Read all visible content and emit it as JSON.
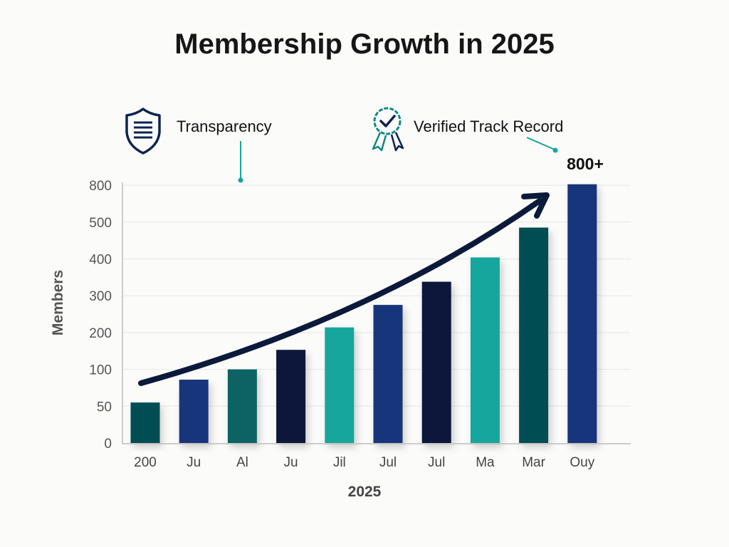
{
  "chart_data": {
    "type": "bar",
    "title": "Membership Growth in 2025",
    "xlabel": "2025",
    "ylabel": "Members",
    "y_tick_labels": [
      0,
      50,
      100,
      200,
      300,
      400,
      500,
      800
    ],
    "ylim": [
      0,
      800
    ],
    "grid": true,
    "categories": [
      "200",
      "Ju",
      "Al",
      "Ju",
      "Jil",
      "Jul",
      "Jul",
      "Ma",
      "Mar",
      "Ouy"
    ],
    "values": [
      55,
      86,
      100,
      153,
      214,
      275,
      338,
      404,
      485,
      808
    ],
    "bar_colors": [
      "#044d52",
      "#12357a",
      "#0a6463",
      "#07173a",
      "#12a69e",
      "#12357a",
      "#07173a",
      "#12a69e",
      "#044d52",
      "#12357a"
    ],
    "annotations": [
      {
        "text": "Transparency",
        "icon": "shield-icon"
      },
      {
        "text": "Verified Track Record",
        "icon": "award-ribbon-icon"
      },
      {
        "text": "800+"
      }
    ],
    "trend_arrow": true,
    "accent_color": "#12a69e"
  }
}
